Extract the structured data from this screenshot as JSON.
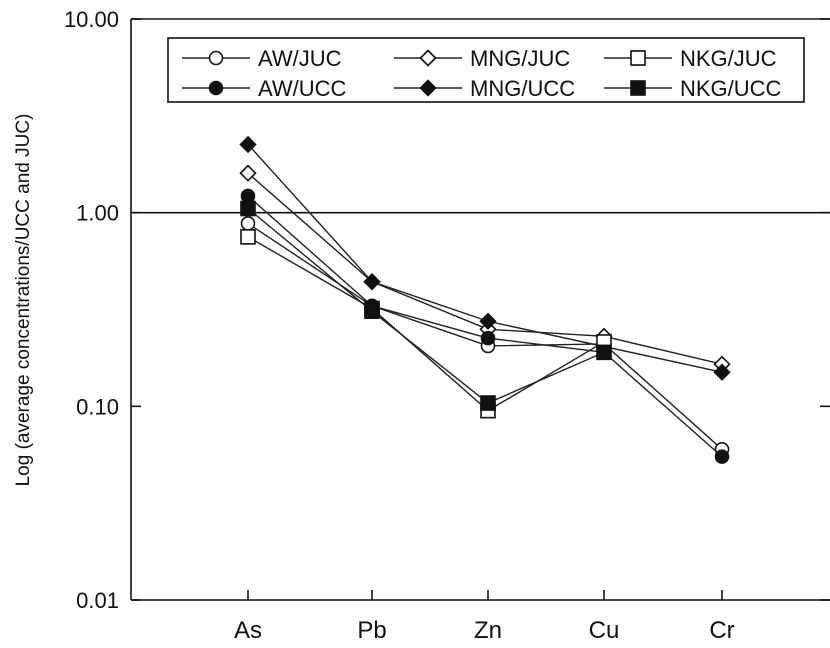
{
  "chart_data": {
    "type": "line",
    "ylabel": "Log (average concentrations/UCC and JUC)",
    "xlabel": "",
    "y_scale": "log",
    "ylim": [
      0.01,
      10
    ],
    "y_ticks": [
      0.01,
      0.1,
      1,
      10
    ],
    "y_tick_labels": [
      "0.01",
      "0.10",
      "1.00",
      "10.00"
    ],
    "reference_line": 1,
    "categories": [
      "As",
      "Pb",
      "Zn",
      "Cu",
      "Cr"
    ],
    "grid": false,
    "legend_position": "top-right",
    "series": [
      {
        "name": "AW/JUC",
        "marker": "circle-open",
        "values": [
          0.88,
          0.33,
          0.205,
          0.21,
          0.06
        ]
      },
      {
        "name": "MNG/JUC",
        "marker": "diamond-open",
        "values": [
          1.6,
          0.44,
          0.25,
          0.23,
          0.165
        ]
      },
      {
        "name": "NKG/JUC",
        "marker": "square-open",
        "values": [
          0.75,
          0.32,
          0.095,
          0.215,
          null
        ]
      },
      {
        "name": "AW/UCC",
        "marker": "circle-filled",
        "values": [
          1.22,
          0.33,
          0.225,
          0.19,
          0.055
        ]
      },
      {
        "name": "MNG/UCC",
        "marker": "diamond-filled",
        "values": [
          2.25,
          0.44,
          0.275,
          null,
          0.15
        ]
      },
      {
        "name": "NKG/UCC",
        "marker": "square-filled",
        "values": [
          1.05,
          0.31,
          0.104,
          0.19,
          null
        ]
      }
    ]
  }
}
